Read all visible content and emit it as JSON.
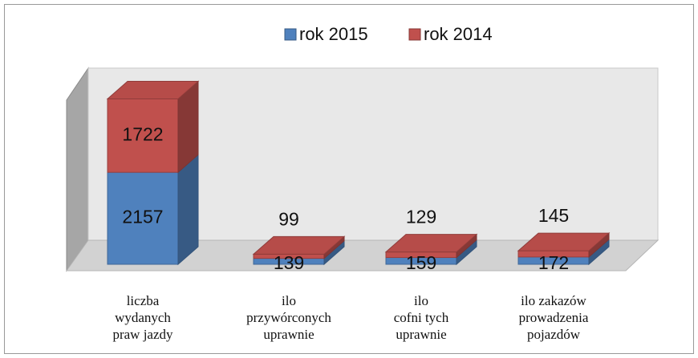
{
  "chart_data": {
    "type": "bar3d_stacked",
    "categories": [
      "liczba\nwydanych\npraw jazdy",
      "ilo\nprzywórconych\nuprawnie",
      "ilo\ncofni  tych\nuprawnie",
      "ilo     zakazów\nprowadzenia\npojazdów"
    ],
    "series": [
      {
        "name": "rok 2015",
        "color": "#4f81bd",
        "values": [
          2157,
          139,
          159,
          172
        ]
      },
      {
        "name": "rok 2014",
        "color": "#c0504d",
        "values": [
          1722,
          99,
          129,
          145
        ]
      }
    ],
    "ylim": [
      0,
      4000
    ]
  }
}
